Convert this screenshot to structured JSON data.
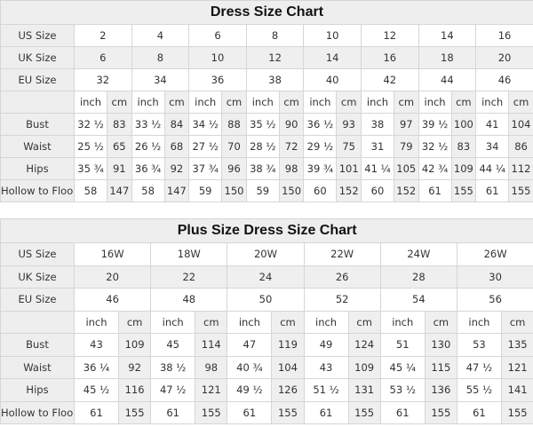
{
  "tables": [
    {
      "title": "Dress Size Chart",
      "us_label": "US Size",
      "uk_label": "UK Size",
      "eu_label": "EU Size",
      "us": [
        "2",
        "4",
        "6",
        "8",
        "10",
        "12",
        "14",
        "16"
      ],
      "uk": [
        "6",
        "8",
        "10",
        "12",
        "14",
        "16",
        "18",
        "20"
      ],
      "eu": [
        "32",
        "34",
        "36",
        "38",
        "40",
        "42",
        "44",
        "46"
      ],
      "unit_inch": "inch",
      "unit_cm": "cm",
      "measurements": [
        {
          "label": "Bust",
          "values": [
            "32 ½",
            "83",
            "33 ½",
            "84",
            "34 ½",
            "88",
            "35 ½",
            "90",
            "36 ½",
            "93",
            "38",
            "97",
            "39 ½",
            "100",
            "41",
            "104"
          ]
        },
        {
          "label": "Waist",
          "values": [
            "25 ½",
            "65",
            "26 ½",
            "68",
            "27 ½",
            "70",
            "28 ½",
            "72",
            "29 ½",
            "75",
            "31",
            "79",
            "32 ½",
            "83",
            "34",
            "86"
          ]
        },
        {
          "label": "Hips",
          "values": [
            "35 ¾",
            "91",
            "36 ¾",
            "92",
            "37 ¾",
            "96",
            "38 ¾",
            "98",
            "39 ¾",
            "101",
            "41 ¼",
            "105",
            "42 ¾",
            "109",
            "44 ¼",
            "112"
          ]
        },
        {
          "label": "Hollow to Floor",
          "values": [
            "58",
            "147",
            "58",
            "147",
            "59",
            "150",
            "59",
            "150",
            "60",
            "152",
            "60",
            "152",
            "61",
            "155",
            "61",
            "155"
          ]
        }
      ]
    },
    {
      "title": "Plus Size Dress Size Chart",
      "us_label": "US Size",
      "uk_label": "UK Size",
      "eu_label": "EU Size",
      "us": [
        "16W",
        "18W",
        "20W",
        "22W",
        "24W",
        "26W"
      ],
      "uk": [
        "20",
        "22",
        "24",
        "26",
        "28",
        "30"
      ],
      "eu": [
        "46",
        "48",
        "50",
        "52",
        "54",
        "56"
      ],
      "unit_inch": "inch",
      "unit_cm": "cm",
      "measurements": [
        {
          "label": "Bust",
          "values": [
            "43",
            "109",
            "45",
            "114",
            "47",
            "119",
            "49",
            "124",
            "51",
            "130",
            "53",
            "135"
          ]
        },
        {
          "label": "Waist",
          "values": [
            "36 ¼",
            "92",
            "38 ½",
            "98",
            "40 ¾",
            "104",
            "43",
            "109",
            "45 ¼",
            "115",
            "47 ½",
            "121"
          ]
        },
        {
          "label": "Hips",
          "values": [
            "45 ½",
            "116",
            "47 ½",
            "121",
            "49 ½",
            "126",
            "51 ½",
            "131",
            "53 ½",
            "136",
            "55 ½",
            "141"
          ]
        },
        {
          "label": "Hollow to Floor",
          "values": [
            "61",
            "155",
            "61",
            "155",
            "61",
            "155",
            "61",
            "155",
            "61",
            "155",
            "61",
            "155"
          ]
        }
      ]
    }
  ]
}
